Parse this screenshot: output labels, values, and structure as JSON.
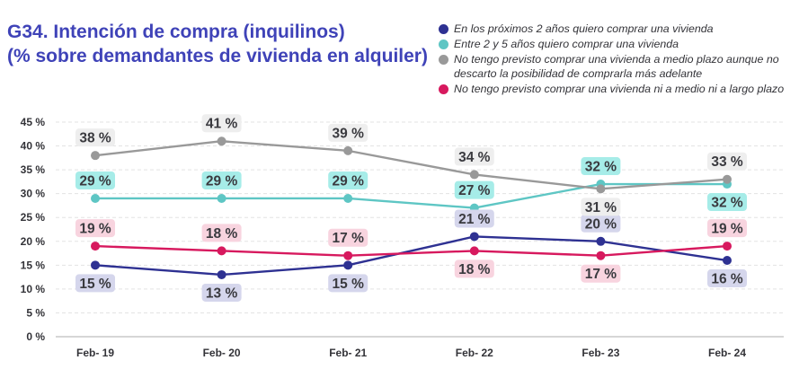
{
  "title_line1": "G34. Intención de compra (inquilinos)",
  "title_line2": "(% sobre demandantes de vivienda en alquiler)",
  "chart_data": {
    "type": "line",
    "categories": [
      "Feb- 19",
      "Feb- 20",
      "Feb- 21",
      "Feb- 22",
      "Feb- 23",
      "Feb- 24"
    ],
    "ylim": [
      0,
      45
    ],
    "ytick_values": [
      0,
      5,
      10,
      15,
      20,
      25,
      30,
      35,
      40,
      45
    ],
    "yticks": [
      "0 %",
      "5 %",
      "10 %",
      "15 %",
      "20 %",
      "25 %",
      "30 %",
      "35 %",
      "40 %",
      "45 %"
    ],
    "grid": true,
    "legend_position": "top-right",
    "series": [
      {
        "name": "En los próximos 2 años quiero comprar una vivienda",
        "color": "#2e3192",
        "label_bg": "#d5d6ec",
        "values": [
          15,
          13,
          15,
          21,
          20,
          16
        ],
        "labels": [
          "15 %",
          "13 %",
          "15 %",
          "21 %",
          "20 %",
          "16 %"
        ],
        "label_pos": [
          "below",
          "below",
          "below",
          "above",
          "above",
          "below"
        ]
      },
      {
        "name": "Entre 2 y 5 años quiero comprar una vivienda",
        "color": "#5ec6c4",
        "label_bg": "#a6ece8",
        "values": [
          29,
          29,
          29,
          27,
          32,
          32
        ],
        "labels": [
          "29 %",
          "29 %",
          "29 %",
          "27 %",
          "32 %",
          "32 %"
        ],
        "label_pos": [
          "above",
          "above",
          "above",
          "above",
          "above",
          "below"
        ]
      },
      {
        "name": "No tengo previsto comprar una vivienda a medio plazo aunque no descarto la posibilidad de comprarla más adelante",
        "color": "#999999",
        "label_bg": "#eeeeee",
        "values": [
          38,
          41,
          39,
          34,
          31,
          33
        ],
        "labels": [
          "38 %",
          "41 %",
          "39 %",
          "34 %",
          "31 %",
          "33 %"
        ],
        "label_pos": [
          "above",
          "above",
          "above",
          "above",
          "below",
          "above"
        ]
      },
      {
        "name": "No tengo previsto comprar una vivienda ni a medio ni a largo plazo",
        "color": "#d7195e",
        "label_bg": "#f8d4df",
        "values": [
          19,
          18,
          17,
          18,
          17,
          19
        ],
        "labels": [
          "19 %",
          "18 %",
          "17 %",
          "18 %",
          "17 %",
          "19 %"
        ],
        "label_pos": [
          "above",
          "above",
          "above",
          "below",
          "below",
          "above"
        ]
      }
    ]
  }
}
